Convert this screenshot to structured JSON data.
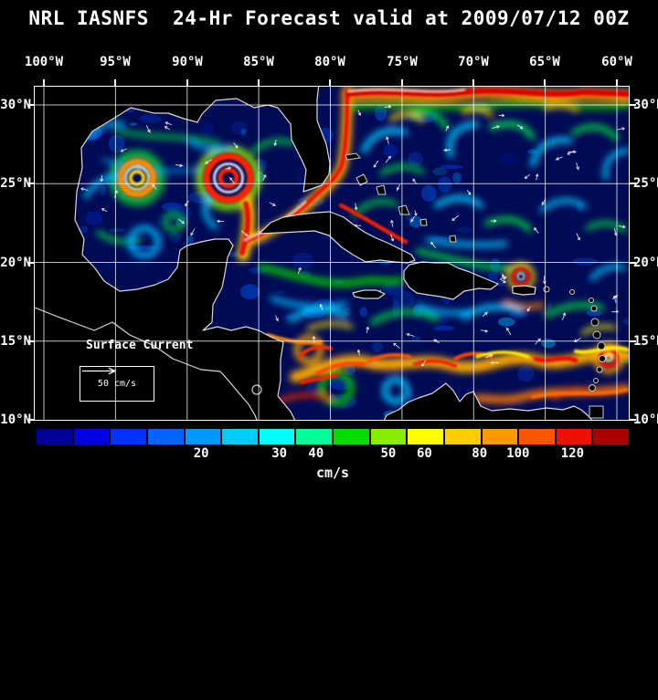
{
  "title": "NRL IASNFS  24-Hr Forecast valid at 2009/07/12 00Z",
  "axes": {
    "lon_labels": [
      "100°W",
      "95°W",
      "90°W",
      "85°W",
      "80°W",
      "75°W",
      "70°W",
      "65°W",
      "60°W"
    ],
    "lat_labels_left": [
      "30°N",
      "25°N",
      "20°N",
      "15°N",
      "10°N"
    ],
    "lat_labels_right": [
      "30°N",
      "25°N",
      "20°N",
      "15°N",
      "10°N"
    ]
  },
  "map": {
    "annotation_label": "Surface Current",
    "scale_label": "50 cm/s",
    "ocean_base_color": "#000a55",
    "land_color": "#000000",
    "coastline_color": "#d8d8d8"
  },
  "colorbar": {
    "unit": "cm/s",
    "ticks": [
      "20",
      "30",
      "40",
      "50",
      "60",
      "80",
      "100",
      "120"
    ],
    "colors": [
      "#000099",
      "#0000e6",
      "#0033ff",
      "#0066ff",
      "#0099ff",
      "#00ccff",
      "#00ffff",
      "#00ff99",
      "#00dd00",
      "#88ee00",
      "#ffff00",
      "#ffcc00",
      "#ff9900",
      "#ff5500",
      "#ee1100",
      "#aa0000"
    ]
  }
}
